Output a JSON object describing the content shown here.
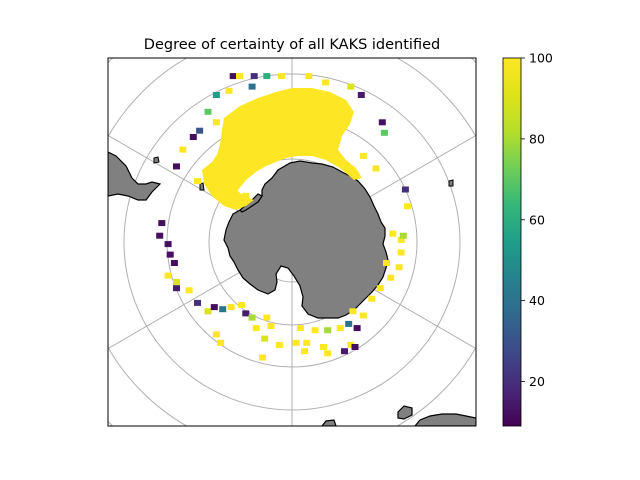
{
  "chart_data": {
    "type": "heatmap",
    "title": "Degree of certainty of all KAKS identified",
    "projection": "south-polar-stereographic",
    "grid": true,
    "colormap": "viridis",
    "colorbar": {
      "range": [
        9,
        100
      ],
      "ticks": [
        "20",
        "40",
        "60",
        "80",
        "100"
      ],
      "tick_values": [
        20,
        40,
        60,
        80,
        100
      ],
      "placement": "right"
    },
    "colors": {
      "land": "#808080",
      "coast": "#000000",
      "gridline": "#b0b0b0",
      "frame": "#000000"
    },
    "points": [
      {
        "x": -2.8,
        "y": 7.9,
        "v": 12
      },
      {
        "x": -2.5,
        "y": 7.9,
        "v": 100
      },
      {
        "x": -1.8,
        "y": 7.9,
        "v": 20
      },
      {
        "x": -1.2,
        "y": 7.9,
        "v": 60
      },
      {
        "x": -0.5,
        "y": 7.9,
        "v": 100
      },
      {
        "x": 0.8,
        "y": 7.9,
        "v": 100
      },
      {
        "x": 1.6,
        "y": 7.6,
        "v": 100
      },
      {
        "x": 2.8,
        "y": 7.4,
        "v": 90
      },
      {
        "x": 3.3,
        "y": 7.0,
        "v": 15
      },
      {
        "x": -3.6,
        "y": 7.0,
        "v": 55
      },
      {
        "x": -3.0,
        "y": 7.2,
        "v": 100
      },
      {
        "x": -1.9,
        "y": 7.4,
        "v": 40
      },
      {
        "x": -4.0,
        "y": 6.2,
        "v": 70
      },
      {
        "x": -3.6,
        "y": 5.7,
        "v": 100
      },
      {
        "x": -4.4,
        "y": 5.3,
        "v": 30
      },
      {
        "x": -4.7,
        "y": 5.0,
        "v": 12
      },
      {
        "x": -5.2,
        "y": 4.4,
        "v": 100
      },
      {
        "x": -5.5,
        "y": 3.6,
        "v": 12
      },
      {
        "x": 4.3,
        "y": 5.7,
        "v": 12
      },
      {
        "x": 4.4,
        "y": 5.2,
        "v": 70
      },
      {
        "x": 3.4,
        "y": 4.1,
        "v": 100
      },
      {
        "x": 4.0,
        "y": 3.5,
        "v": 100
      },
      {
        "x": 5.4,
        "y": 2.5,
        "v": 20
      },
      {
        "x": 5.5,
        "y": 1.7,
        "v": 100
      },
      {
        "x": -4.5,
        "y": 2.9,
        "v": 100
      },
      {
        "x": -3.5,
        "y": 2.6,
        "v": 100
      },
      {
        "x": -2.2,
        "y": 2.2,
        "v": 100
      },
      {
        "x": -6.2,
        "y": 0.9,
        "v": 12
      },
      {
        "x": -6.3,
        "y": 0.3,
        "v": 12
      },
      {
        "x": -5.9,
        "y": -0.1,
        "v": 12
      },
      {
        "x": -5.8,
        "y": -0.6,
        "v": 12
      },
      {
        "x": -5.6,
        "y": -1.0,
        "v": 12
      },
      {
        "x": -5.9,
        "y": -1.6,
        "v": 100
      },
      {
        "x": -5.5,
        "y": -1.9,
        "v": 90
      },
      {
        "x": -5.5,
        "y": -2.2,
        "v": 15
      },
      {
        "x": -4.9,
        "y": -2.3,
        "v": 100
      },
      {
        "x": -4.5,
        "y": -2.9,
        "v": 20
      },
      {
        "x": -4.0,
        "y": -3.3,
        "v": 90
      },
      {
        "x": -3.7,
        "y": -3.1,
        "v": 12
      },
      {
        "x": -3.3,
        "y": -3.2,
        "v": 40
      },
      {
        "x": -2.9,
        "y": -3.1,
        "v": 100
      },
      {
        "x": -2.4,
        "y": -3.0,
        "v": 100
      },
      {
        "x": -2.2,
        "y": -3.4,
        "v": 15
      },
      {
        "x": -1.9,
        "y": -3.6,
        "v": 80
      },
      {
        "x": -1.7,
        "y": -4.1,
        "v": 100
      },
      {
        "x": -1.2,
        "y": -3.6,
        "v": 100
      },
      {
        "x": -1.0,
        "y": -4.0,
        "v": 100
      },
      {
        "x": 0.4,
        "y": -4.1,
        "v": 100
      },
      {
        "x": 1.1,
        "y": -4.2,
        "v": 100
      },
      {
        "x": 1.7,
        "y": -4.2,
        "v": 80
      },
      {
        "x": 2.3,
        "y": -4.1,
        "v": 100
      },
      {
        "x": 2.7,
        "y": -3.9,
        "v": 40
      },
      {
        "x": 3.1,
        "y": -4.1,
        "v": 12
      },
      {
        "x": 3.4,
        "y": -3.5,
        "v": 100
      },
      {
        "x": 2.8,
        "y": -4.9,
        "v": 100
      },
      {
        "x": 2.5,
        "y": -5.2,
        "v": 15
      },
      {
        "x": 3.0,
        "y": -5.0,
        "v": 12
      },
      {
        "x": 4.2,
        "y": -2.2,
        "v": 100
      },
      {
        "x": 4.7,
        "y": -1.7,
        "v": 100
      },
      {
        "x": 5.1,
        "y": -1.2,
        "v": 100
      },
      {
        "x": 5.2,
        "y": -0.5,
        "v": 100
      },
      {
        "x": 5.2,
        "y": 0.1,
        "v": 100
      },
      {
        "x": 4.8,
        "y": 0.4,
        "v": 100
      },
      {
        "x": 4.5,
        "y": -1.0,
        "v": 100
      },
      {
        "x": 3.8,
        "y": -2.7,
        "v": 100
      },
      {
        "x": 5.3,
        "y": 0.3,
        "v": 80
      },
      {
        "x": 2.9,
        "y": -3.3,
        "v": 100
      },
      {
        "x": -1.3,
        "y": -4.6,
        "v": 90
      },
      {
        "x": -0.6,
        "y": -4.9,
        "v": 100
      },
      {
        "x": 0.2,
        "y": -4.8,
        "v": 100
      },
      {
        "x": 0.7,
        "y": -4.8,
        "v": 100
      },
      {
        "x": -3.6,
        "y": -4.4,
        "v": 100
      },
      {
        "x": -3.4,
        "y": -4.8,
        "v": 100
      },
      {
        "x": -1.4,
        "y": -5.5,
        "v": 100
      },
      {
        "x": 0.6,
        "y": -5.2,
        "v": 100
      },
      {
        "x": 1.5,
        "y": -5.0,
        "v": 100
      },
      {
        "x": 1.7,
        "y": -5.3,
        "v": 100
      }
    ]
  }
}
